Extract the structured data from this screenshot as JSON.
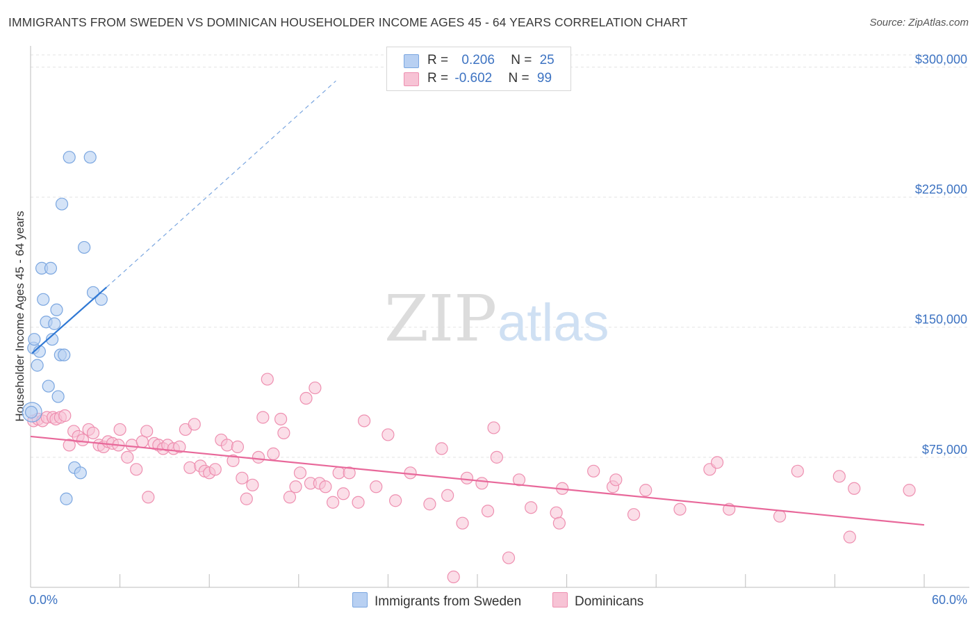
{
  "title": "IMMIGRANTS FROM SWEDEN VS DOMINICAN HOUSEHOLDER INCOME AGES 45 - 64 YEARS CORRELATION CHART",
  "source": "Source: ZipAtlas.com",
  "watermark": {
    "zip": "ZIP",
    "atlas": "atlas"
  },
  "colors": {
    "sweden_fill": "#b8d0f2",
    "sweden_stroke": "#7aa6e0",
    "sweden_line": "#2f78d4",
    "dominican_fill": "#f7c3d5",
    "dominican_stroke": "#ee8fb0",
    "dominican_line": "#e8689a",
    "axis_label": "#3d73c2"
  },
  "legend": {
    "rows": [
      {
        "r_label": "R = ",
        "r_value": "0.206",
        "n_label": "N = ",
        "n_value": "25"
      },
      {
        "r_label": "R = ",
        "r_value": "-0.602",
        "n_label": "N = ",
        "n_value": "99"
      }
    ]
  },
  "bottom_legend": {
    "sweden": "Immigrants from Sweden",
    "dominican": "Dominicans"
  },
  "chart_data": {
    "type": "scatter",
    "title": "IMMIGRANTS FROM SWEDEN VS DOMINICAN HOUSEHOLDER INCOME AGES 45 - 64 YEARS CORRELATION CHART",
    "xlabel": "",
    "ylabel": "Householder Income Ages 45 - 64 years",
    "xlim": [
      0,
      60
    ],
    "ylim": [
      0,
      307000
    ],
    "x_tick_labels": [
      "0.0%",
      "60.0%"
    ],
    "y_ticks": [
      75000,
      150000,
      225000,
      300000
    ],
    "y_tick_labels": [
      "$75,000",
      "$150,000",
      "$225,000",
      "$300,000"
    ],
    "series": [
      {
        "name": "Immigrants from Sweden",
        "r": 0.206,
        "n": 25,
        "trend": {
          "x1": 0.1,
          "y1": 135000,
          "x2": 5.1,
          "y2": 173000,
          "dash_to_x": 20.5,
          "dash_to_y": 292000
        },
        "points": [
          [
            0.05,
            101000
          ],
          [
            0.2,
            138000
          ],
          [
            0.25,
            143000
          ],
          [
            0.45,
            128000
          ],
          [
            0.6,
            136000
          ],
          [
            0.75,
            184000
          ],
          [
            0.85,
            166000
          ],
          [
            1.05,
            153000
          ],
          [
            1.2,
            116000
          ],
          [
            1.35,
            184000
          ],
          [
            1.45,
            143000
          ],
          [
            1.6,
            152000
          ],
          [
            1.75,
            160000
          ],
          [
            1.85,
            110000
          ],
          [
            2.0,
            134000
          ],
          [
            2.1,
            221000
          ],
          [
            2.25,
            134000
          ],
          [
            2.4,
            51000
          ],
          [
            2.6,
            248000
          ],
          [
            2.95,
            69000
          ],
          [
            3.35,
            66000
          ],
          [
            3.6,
            196000
          ],
          [
            4.0,
            248000
          ],
          [
            4.2,
            170000
          ],
          [
            4.75,
            166000
          ]
        ]
      },
      {
        "name": "Dominicans",
        "r": -0.602,
        "n": 99,
        "trend": {
          "x1": 0,
          "y1": 87000,
          "x2": 60,
          "y2": 36000
        },
        "points": [
          [
            0.2,
            96000
          ],
          [
            0.5,
            97000
          ],
          [
            0.8,
            96000
          ],
          [
            1.1,
            98000
          ],
          [
            1.5,
            98000
          ],
          [
            1.7,
            97000
          ],
          [
            2.0,
            98000
          ],
          [
            2.3,
            99000
          ],
          [
            2.6,
            82000
          ],
          [
            2.9,
            90000
          ],
          [
            3.2,
            87000
          ],
          [
            3.5,
            85000
          ],
          [
            3.9,
            91000
          ],
          [
            4.2,
            89000
          ],
          [
            4.6,
            82000
          ],
          [
            4.9,
            81000
          ],
          [
            5.2,
            84000
          ],
          [
            5.5,
            83000
          ],
          [
            5.9,
            82000
          ],
          [
            6.0,
            91000
          ],
          [
            6.5,
            75000
          ],
          [
            6.8,
            82000
          ],
          [
            7.1,
            68000
          ],
          [
            7.5,
            84000
          ],
          [
            7.8,
            90000
          ],
          [
            7.9,
            52000
          ],
          [
            8.3,
            83000
          ],
          [
            8.6,
            82000
          ],
          [
            8.9,
            80000
          ],
          [
            9.2,
            82000
          ],
          [
            9.6,
            80000
          ],
          [
            10.0,
            81000
          ],
          [
            10.4,
            91000
          ],
          [
            10.7,
            69000
          ],
          [
            11.0,
            94000
          ],
          [
            11.4,
            70000
          ],
          [
            11.7,
            67000
          ],
          [
            12.0,
            66000
          ],
          [
            12.4,
            68000
          ],
          [
            12.8,
            85000
          ],
          [
            13.2,
            82000
          ],
          [
            13.6,
            73000
          ],
          [
            13.9,
            81000
          ],
          [
            14.2,
            63000
          ],
          [
            14.5,
            51000
          ],
          [
            14.9,
            59000
          ],
          [
            15.3,
            75000
          ],
          [
            15.6,
            98000
          ],
          [
            15.9,
            120000
          ],
          [
            16.3,
            77000
          ],
          [
            16.8,
            97000
          ],
          [
            17.0,
            89000
          ],
          [
            17.4,
            52000
          ],
          [
            17.8,
            58000
          ],
          [
            18.1,
            66000
          ],
          [
            18.5,
            109000
          ],
          [
            18.8,
            60000
          ],
          [
            19.1,
            115000
          ],
          [
            19.4,
            60000
          ],
          [
            19.8,
            58000
          ],
          [
            20.3,
            49000
          ],
          [
            20.7,
            66000
          ],
          [
            21.0,
            54000
          ],
          [
            21.4,
            66000
          ],
          [
            22.0,
            49000
          ],
          [
            22.4,
            96000
          ],
          [
            23.2,
            58000
          ],
          [
            24.0,
            88000
          ],
          [
            24.5,
            50000
          ],
          [
            25.5,
            66000
          ],
          [
            26.8,
            48000
          ],
          [
            27.6,
            80000
          ],
          [
            28.0,
            53000
          ],
          [
            28.4,
            6000
          ],
          [
            29.0,
            37000
          ],
          [
            29.3,
            63000
          ],
          [
            30.3,
            60000
          ],
          [
            30.7,
            44000
          ],
          [
            31.1,
            92000
          ],
          [
            31.3,
            75000
          ],
          [
            32.1,
            17000
          ],
          [
            32.8,
            62000
          ],
          [
            33.6,
            46000
          ],
          [
            35.3,
            43000
          ],
          [
            35.5,
            37000
          ],
          [
            35.7,
            57000
          ],
          [
            37.8,
            67000
          ],
          [
            39.1,
            58000
          ],
          [
            39.3,
            62000
          ],
          [
            40.5,
            42000
          ],
          [
            41.3,
            56000
          ],
          [
            43.6,
            45000
          ],
          [
            45.6,
            68000
          ],
          [
            46.1,
            72000
          ],
          [
            46.9,
            45000
          ],
          [
            50.3,
            41000
          ],
          [
            51.5,
            67000
          ],
          [
            54.3,
            64000
          ],
          [
            55.0,
            29000
          ],
          [
            55.3,
            57000
          ],
          [
            59.0,
            56000
          ]
        ]
      }
    ]
  }
}
